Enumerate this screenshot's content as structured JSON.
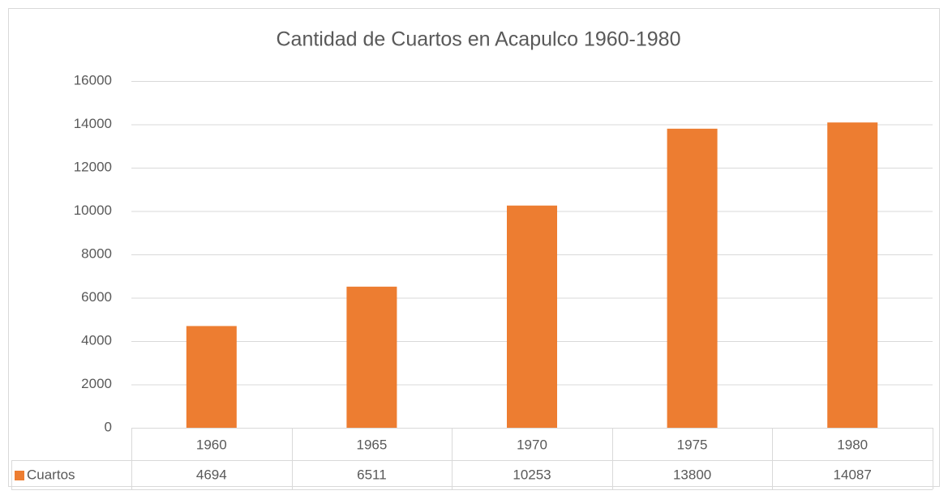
{
  "chart_data": {
    "type": "bar",
    "title": "Cantidad de Cuartos en Acapulco 1960-1980",
    "categories": [
      "1960",
      "1965",
      "1970",
      "1975",
      "1980"
    ],
    "series": [
      {
        "name": "Cuartos",
        "color": "#ed7d31",
        "values": [
          4694,
          6511,
          10253,
          13800,
          14087
        ]
      }
    ],
    "ylim": [
      0,
      16000
    ],
    "yticks": [
      0,
      2000,
      4000,
      6000,
      8000,
      10000,
      12000,
      14000,
      16000
    ],
    "grid": true,
    "data_table": true
  }
}
